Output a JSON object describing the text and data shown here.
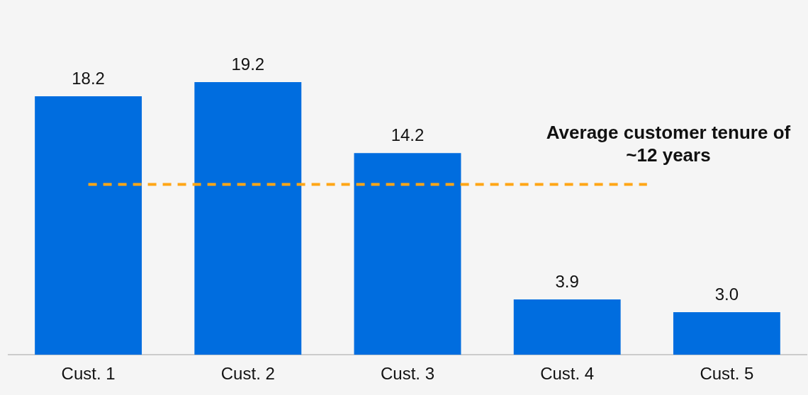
{
  "chart_data": {
    "type": "bar",
    "categories": [
      "Cust. 1",
      "Cust. 2",
      "Cust. 3",
      "Cust. 4",
      "Cust. 5"
    ],
    "values": [
      18.2,
      19.2,
      14.2,
      3.9,
      3.0
    ],
    "color": "#006ddf",
    "value_labels": [
      "18.2",
      "19.2",
      "14.2",
      "3.9",
      "3.0"
    ],
    "ref_lines": [
      {
        "axis": "y",
        "value": 12,
        "label": "Average customer tenure of ~12 years",
        "color": "#ffa616",
        "line_style": "dashed"
      }
    ]
  }
}
